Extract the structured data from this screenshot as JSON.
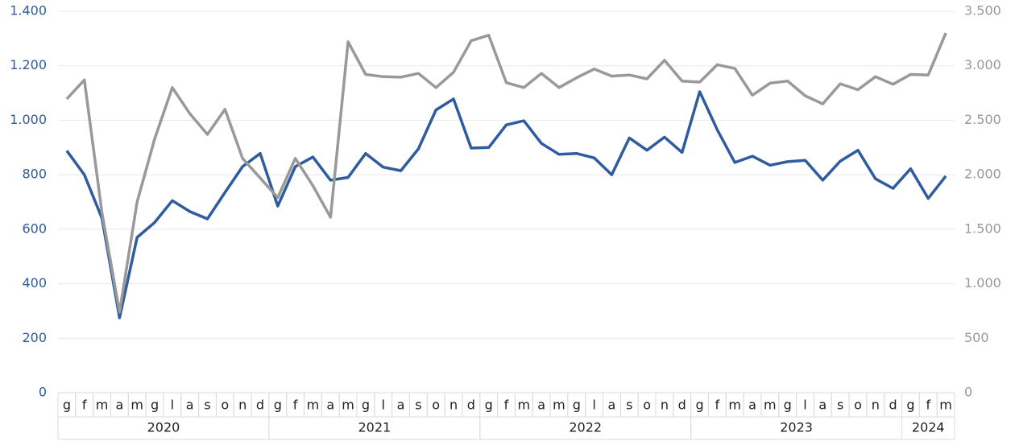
{
  "chart_data": {
    "type": "line",
    "categories": [
      "g",
      "f",
      "m",
      "a",
      "m",
      "g",
      "l",
      "a",
      "s",
      "o",
      "n",
      "d",
      "g",
      "f",
      "m",
      "a",
      "m",
      "g",
      "l",
      "a",
      "s",
      "o",
      "n",
      "d",
      "g",
      "f",
      "m",
      "a",
      "m",
      "g",
      "l",
      "a",
      "s",
      "o",
      "n",
      "d",
      "g",
      "f",
      "m",
      "a",
      "m",
      "g",
      "l",
      "a",
      "s",
      "o",
      "n",
      "d",
      "g",
      "f",
      "m"
    ],
    "year_groups": [
      {
        "label": "2020",
        "months": 12
      },
      {
        "label": "2021",
        "months": 12
      },
      {
        "label": "2022",
        "months": 12
      },
      {
        "label": "2023",
        "months": 12
      },
      {
        "label": "2024",
        "months": 3
      }
    ],
    "series": [
      {
        "color": "#2e5c9e",
        "axis": "y",
        "values": [
          888,
          800,
          640,
          275,
          570,
          625,
          705,
          665,
          638,
          735,
          830,
          878,
          685,
          830,
          865,
          780,
          790,
          878,
          828,
          815,
          895,
          1038,
          1078,
          898,
          900,
          983,
          998,
          915,
          875,
          878,
          862,
          800,
          935,
          890,
          938,
          882,
          1105,
          965,
          845,
          868,
          835,
          848,
          853,
          780,
          850,
          890,
          785,
          750,
          822,
          713,
          795
        ]
      },
      {
        "color": "#999999",
        "axis": "y2",
        "values": [
          2695,
          2870,
          1650,
          740,
          1750,
          2330,
          2800,
          2560,
          2370,
          2600,
          2150,
          1970,
          1790,
          2150,
          1900,
          1610,
          3220,
          2920,
          2900,
          2895,
          2930,
          2800,
          2940,
          3230,
          3280,
          2845,
          2800,
          2930,
          2800,
          2890,
          2970,
          2905,
          2915,
          2880,
          3050,
          2860,
          2850,
          3010,
          2975,
          2730,
          2840,
          2860,
          2725,
          2650,
          2835,
          2780,
          2900,
          2830,
          2920,
          2915,
          3300
        ]
      }
    ],
    "ylim": [
      0,
      1400
    ],
    "yticks": [
      0,
      200,
      400,
      600,
      800,
      {
        "value": 1000,
        "label": "1.000"
      },
      {
        "value": 1200,
        "label": "1.200"
      },
      {
        "value": 1400,
        "label": "1.400"
      }
    ],
    "y2lim": [
      0,
      3500
    ],
    "y2ticks": [
      0,
      500,
      {
        "value": 1000,
        "label": "1.000"
      },
      {
        "value": 1500,
        "label": "1.500"
      },
      {
        "value": 2000,
        "label": "2.000"
      },
      {
        "value": 2500,
        "label": "2.500"
      },
      {
        "value": 3000,
        "label": "3.000"
      },
      {
        "value": 3500,
        "label": "3.500"
      }
    ],
    "ytick_color": "#2e5c9e",
    "y2tick_color": "#999999",
    "grid": true
  }
}
